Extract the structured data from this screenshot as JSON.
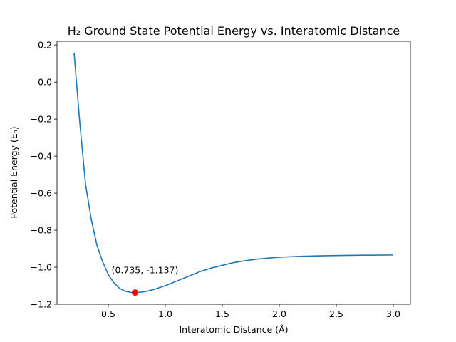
{
  "chart_data": {
    "type": "line",
    "title": "H₂ Ground State Potential Energy vs. Interatomic Distance",
    "xlabel": "Interatomic Distance (Å)",
    "ylabel": "Potential Energy (Eₕ)",
    "xlim": [
      0.05,
      3.15
    ],
    "ylim": [
      -1.2,
      0.22
    ],
    "xticks": [
      0.5,
      1.0,
      1.5,
      2.0,
      2.5,
      3.0
    ],
    "xtick_labels": [
      "0.5",
      "1.0",
      "1.5",
      "2.0",
      "2.5",
      "3.0"
    ],
    "yticks": [
      -1.2,
      -1.0,
      -0.8,
      -0.6,
      -0.4,
      -0.2,
      0.0,
      0.2
    ],
    "ytick_labels": [
      "−1.2",
      "−1.0",
      "−0.8",
      "−0.6",
      "−0.4",
      "−0.2",
      "0.0",
      "0.2"
    ],
    "grid": false,
    "series": [
      {
        "color": "#1f77b4",
        "x": [
          0.2,
          0.25,
          0.3,
          0.35,
          0.4,
          0.45,
          0.5,
          0.55,
          0.6,
          0.65,
          0.7,
          0.735,
          0.8,
          0.85,
          0.9,
          1.0,
          1.1,
          1.2,
          1.3,
          1.4,
          1.5,
          1.6,
          1.7,
          1.8,
          1.9,
          2.0,
          2.2,
          2.4,
          2.6,
          2.8,
          3.0
        ],
        "y": [
          0.157,
          -0.22,
          -0.55,
          -0.74,
          -0.88,
          -0.97,
          -1.04,
          -1.085,
          -1.115,
          -1.13,
          -1.136,
          -1.137,
          -1.134,
          -1.128,
          -1.12,
          -1.1,
          -1.075,
          -1.05,
          -1.025,
          -1.005,
          -0.99,
          -0.975,
          -0.965,
          -0.957,
          -0.951,
          -0.946,
          -0.941,
          -0.938,
          -0.936,
          -0.935,
          -0.934
        ]
      }
    ],
    "marker": {
      "x": 0.735,
      "y": -1.137,
      "color": "#ff0000"
    },
    "annotation": {
      "text": "(0.735, -1.137)",
      "x": 0.735,
      "y": -1.137
    }
  }
}
